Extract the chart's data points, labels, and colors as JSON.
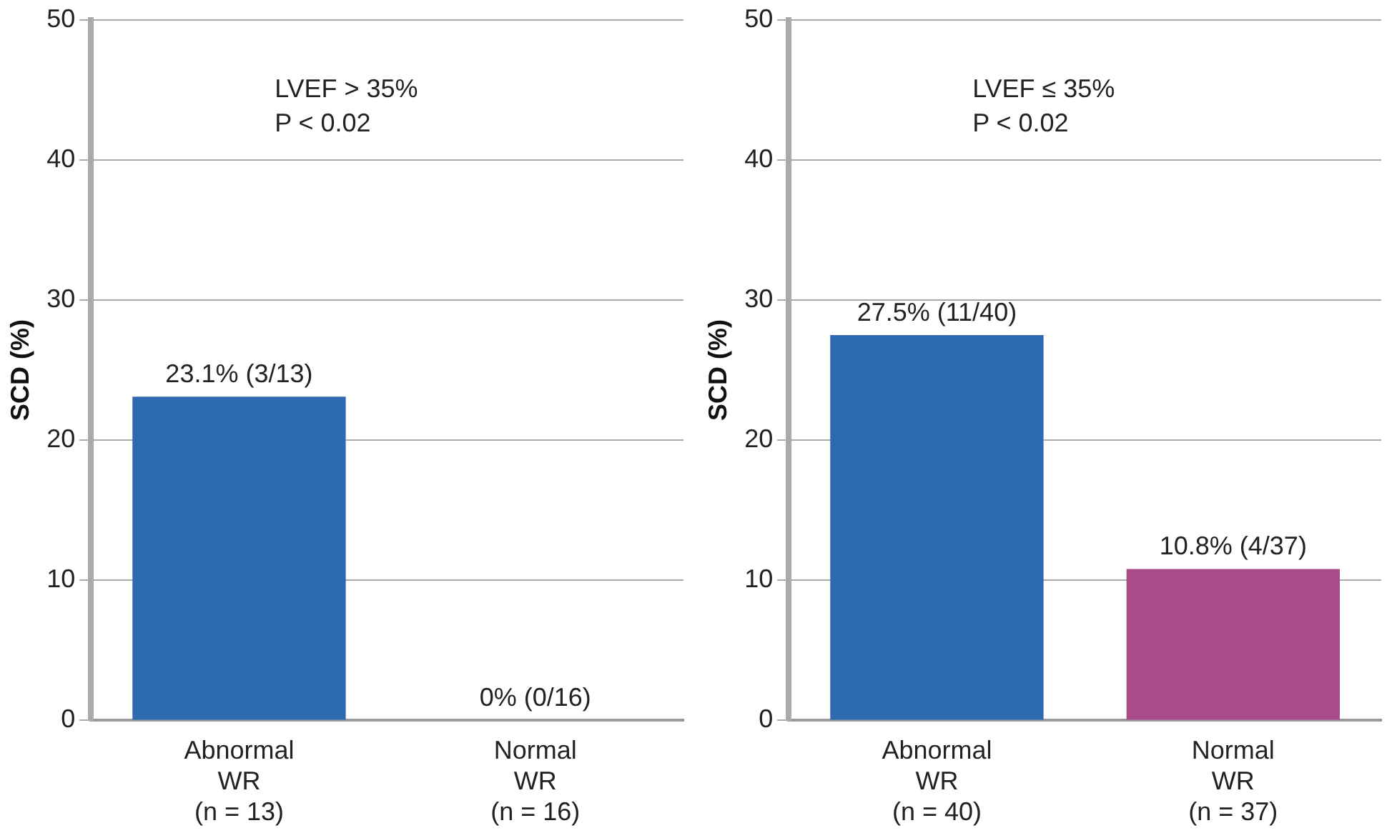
{
  "chart_data": [
    {
      "type": "bar",
      "ylabel": "SCD (%)",
      "annotations": [
        "LVEF > 35%",
        "P < 0.02"
      ],
      "categories": [
        "Abnormal\nWR\n(n = 13)",
        "Normal\nWR\n(n = 16)"
      ],
      "values": [
        23.1,
        0
      ],
      "colors": [
        "#2e6ab0",
        "#a94b8b"
      ],
      "value_labels": [
        "23.1% (3/13)",
        "0% (0/16)"
      ],
      "ylim": [
        0,
        50
      ],
      "yticks": [
        0,
        10,
        20,
        30,
        40,
        50
      ],
      "grid": "y",
      "legend": false
    },
    {
      "type": "bar",
      "ylabel": "SCD (%)",
      "annotations": [
        "LVEF ≤ 35%",
        "P < 0.02"
      ],
      "categories": [
        "Abnormal\nWR\n(n = 40)",
        "Normal\nWR\n(n = 37)"
      ],
      "values": [
        27.5,
        10.8
      ],
      "colors": [
        "#2e6ab0",
        "#a94b8b"
      ],
      "value_labels": [
        "27.5% (11/40)",
        "10.8% (4/37)"
      ],
      "ylim": [
        0,
        50
      ],
      "yticks": [
        0,
        10,
        20,
        30,
        40,
        50
      ],
      "grid": "y",
      "legend": false
    }
  ]
}
